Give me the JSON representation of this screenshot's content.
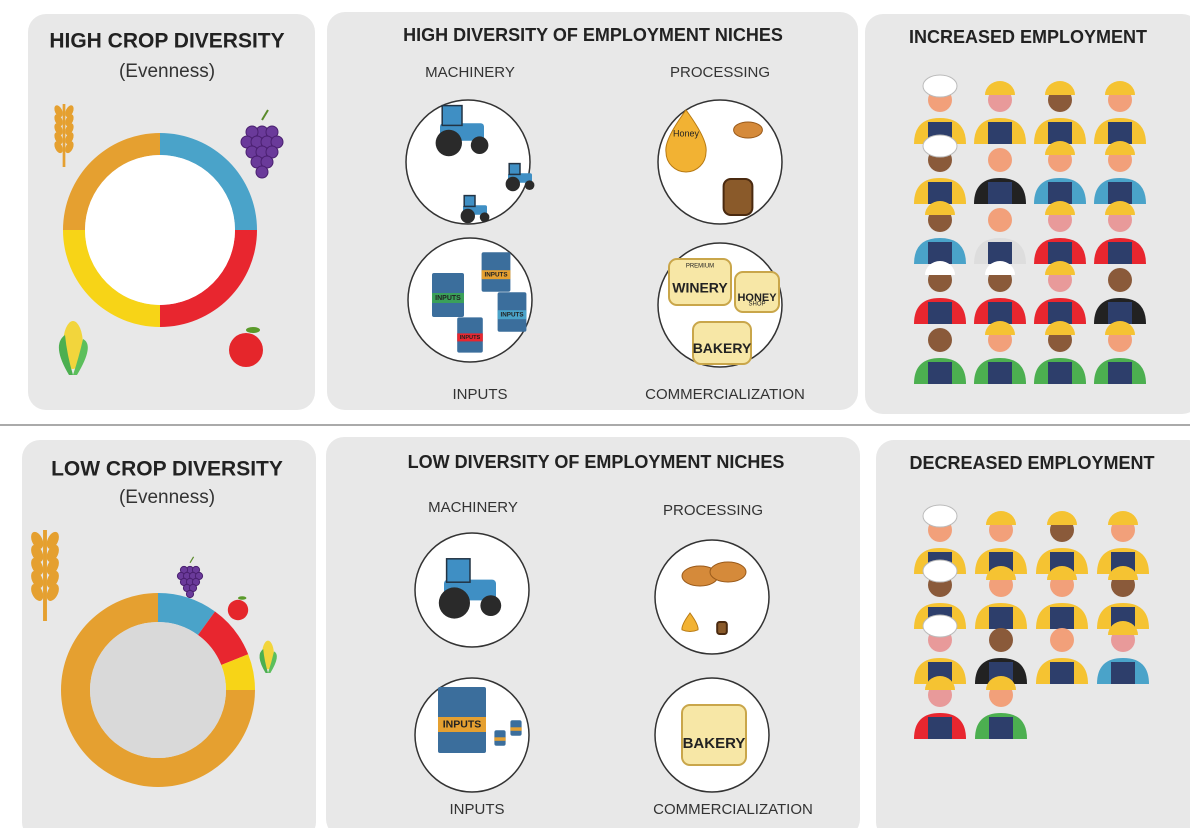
{
  "rows": [
    {
      "crop": {
        "title": "HIGH CROP DIVERSITY",
        "subtitle": "(Evenness)",
        "segments": [
          {
            "color": "#4aa3c9",
            "value": 25
          },
          {
            "color": "#e8262f",
            "value": 25
          },
          {
            "color": "#f7d417",
            "value": 25
          },
          {
            "color": "#e5a030",
            "value": 25
          }
        ]
      },
      "niches": {
        "title": "HIGH DIVERSITY OF EMPLOYMENT NICHES",
        "machinery": "MACHINERY",
        "processing": "PROCESSING",
        "inputs": "INPUTS",
        "commercialization": "COMMERCIALIZATION",
        "icon_texts": {
          "honey": "Honey",
          "inputs": "INPUTS",
          "premium": "PREMIUM",
          "winery": "WINERY",
          "honey_shop": "HONEY",
          "shop": "SHOP",
          "bakery": "BAKERY"
        }
      },
      "employment": {
        "title": "INCREASED EMPLOYMENT"
      }
    },
    {
      "crop": {
        "title": "LOW CROP DIVERSITY",
        "subtitle": "(Evenness)",
        "segments": [
          {
            "color": "#4aa3c9",
            "value": 10
          },
          {
            "color": "#e8262f",
            "value": 9
          },
          {
            "color": "#f7d417",
            "value": 6
          },
          {
            "color": "#e5a030",
            "value": 75
          }
        ]
      },
      "niches": {
        "title": "LOW DIVERSITY OF EMPLOYMENT NICHES",
        "machinery": "MACHINERY",
        "processing": "PROCESSING",
        "inputs": "INPUTS",
        "commercialization": "COMMERCIALIZATION",
        "icon_texts": {
          "inputs": "INPUTS",
          "bakery": "BAKERY"
        }
      },
      "employment": {
        "title": "DECREASED EMPLOYMENT"
      }
    }
  ]
}
